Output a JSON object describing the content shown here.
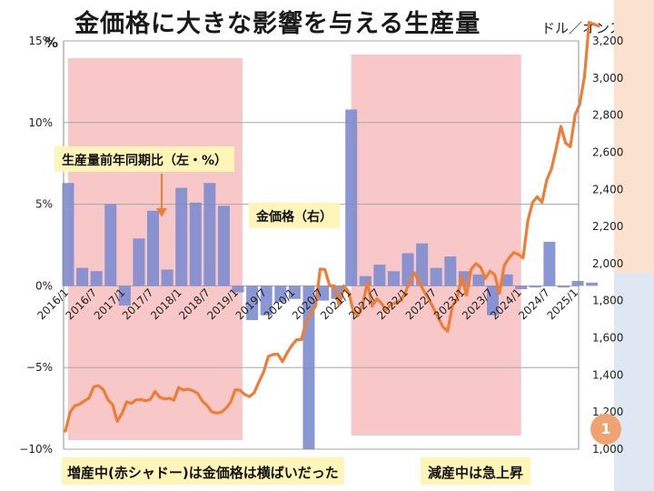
{
  "title": "金価格に大きな影響を与える生産量",
  "right_axis_unit": "ドル／オンス",
  "left_axis_unit": "%",
  "callouts": {
    "production_label": "生産量前年同期比（左・%）",
    "gold_label": "金価格（右）"
  },
  "notes": {
    "left": "増産中(赤シャドー)は金価格は横ばいだった",
    "right": "減産中は急上昇"
  },
  "page_number": "1",
  "colors": {
    "bars": "#7d8cd0",
    "line": "#ee7d35",
    "shade": "#f8c8c8",
    "callout_bg": "#fff5b8",
    "page_badge": "#f0a371"
  },
  "chart_data": {
    "type": "bar+line",
    "x_tick_labels": [
      "2016/1",
      "2016/7",
      "2017/1",
      "2017/7",
      "2018/1",
      "2018/7",
      "2019/1",
      "2019/7",
      "2020/1",
      "2020/7",
      "2021/1",
      "2021/7",
      "2022/1",
      "2022/7",
      "2023/1",
      "2023/7",
      "2024/1",
      "2024/7",
      "2025/1"
    ],
    "left_axis": {
      "ticks": [
        "15%",
        "10%",
        "5%",
        "0%",
        "−5%",
        "−10%"
      ],
      "ylim": [
        -10,
        15
      ]
    },
    "right_axis": {
      "ticks": [
        "3,200",
        "3,000",
        "2,800",
        "2,600",
        "2,400",
        "2,200",
        "2,000",
        "1,800",
        "1,600",
        "1,400",
        "1,200",
        "1,000"
      ],
      "ylim": [
        1000,
        3200
      ]
    },
    "shaded_ranges": [
      [
        "2016/1",
        "2019/1"
      ],
      [
        "2021/1",
        "2024/1"
      ]
    ],
    "bar_series": {
      "name": "生産量前年同期比（左・%）",
      "x": [
        "2016/1",
        "2016/4",
        "2016/7",
        "2016/10",
        "2017/1",
        "2017/4",
        "2017/7",
        "2017/10",
        "2018/1",
        "2018/4",
        "2018/7",
        "2018/10",
        "2019/1",
        "2019/4",
        "2019/7",
        "2019/10",
        "2020/1",
        "2020/4",
        "2020/7",
        "2020/10",
        "2021/1",
        "2021/4",
        "2021/7",
        "2021/10",
        "2022/1",
        "2022/4",
        "2022/7",
        "2022/10",
        "2023/1",
        "2023/4",
        "2023/7",
        "2023/10",
        "2024/1",
        "2024/4",
        "2024/7",
        "2024/10",
        "2025/1",
        "2025/4"
      ],
      "values": [
        6.3,
        1.1,
        0.9,
        5.0,
        -1.2,
        2.9,
        4.6,
        1.0,
        6.0,
        5.1,
        6.3,
        4.9,
        -0.4,
        -2.1,
        -1.8,
        -1.0,
        -0.8,
        -10.0,
        -0.9,
        -0.8,
        10.8,
        0.6,
        1.3,
        0.9,
        2.0,
        2.6,
        1.1,
        1.8,
        0.9,
        0.7,
        -1.8,
        0.7,
        -0.2,
        -0.1,
        2.7,
        -0.1,
        0.3,
        0.2
      ]
    },
    "line_series": {
      "name": "金価格（右）",
      "x": [
        "2016/1",
        "2016/2",
        "2016/3",
        "2016/4",
        "2016/5",
        "2016/6",
        "2016/7",
        "2016/8",
        "2016/9",
        "2016/10",
        "2016/11",
        "2016/12",
        "2017/1",
        "2017/2",
        "2017/3",
        "2017/4",
        "2017/5",
        "2017/6",
        "2017/7",
        "2017/8",
        "2017/9",
        "2017/10",
        "2017/11",
        "2017/12",
        "2018/1",
        "2018/2",
        "2018/3",
        "2018/4",
        "2018/5",
        "2018/6",
        "2018/7",
        "2018/8",
        "2018/9",
        "2018/10",
        "2018/11",
        "2018/12",
        "2019/1",
        "2019/2",
        "2019/3",
        "2019/4",
        "2019/5",
        "2019/6",
        "2019/7",
        "2019/8",
        "2019/9",
        "2019/10",
        "2019/11",
        "2019/12",
        "2020/1",
        "2020/2",
        "2020/3",
        "2020/4",
        "2020/5",
        "2020/6",
        "2020/7",
        "2020/8",
        "2020/9",
        "2020/10",
        "2020/11",
        "2020/12",
        "2021/1",
        "2021/2",
        "2021/3",
        "2021/4",
        "2021/5",
        "2021/6",
        "2021/7",
        "2021/8",
        "2021/9",
        "2021/10",
        "2021/11",
        "2021/12",
        "2022/1",
        "2022/2",
        "2022/3",
        "2022/4",
        "2022/5",
        "2022/6",
        "2022/7",
        "2022/8",
        "2022/9",
        "2022/10",
        "2022/11",
        "2022/12",
        "2023/1",
        "2023/2",
        "2023/3",
        "2023/4",
        "2023/5",
        "2023/6",
        "2023/7",
        "2023/8",
        "2023/9",
        "2023/10",
        "2023/11",
        "2023/12",
        "2024/1",
        "2024/2",
        "2024/3",
        "2024/4",
        "2024/5",
        "2024/6",
        "2024/7",
        "2024/8",
        "2024/9",
        "2024/10",
        "2024/11",
        "2024/12",
        "2025/1",
        "2025/2",
        "2025/3",
        "2025/4",
        "2025/5",
        "2025/6"
      ],
      "values": [
        1097,
        1200,
        1234,
        1242,
        1260,
        1275,
        1336,
        1342,
        1322,
        1266,
        1240,
        1150,
        1192,
        1255,
        1247,
        1266,
        1268,
        1260,
        1268,
        1311,
        1280,
        1270,
        1275,
        1264,
        1332,
        1318,
        1324,
        1315,
        1302,
        1260,
        1236,
        1201,
        1195,
        1198,
        1220,
        1252,
        1320,
        1318,
        1295,
        1283,
        1304,
        1362,
        1415,
        1500,
        1510,
        1512,
        1472,
        1520,
        1560,
        1590,
        1590,
        1685,
        1730,
        1770,
        1970,
        1968,
        1880,
        1880,
        1775,
        1880,
        1850,
        1745,
        1720,
        1780,
        1900,
        1770,
        1810,
        1785,
        1750,
        1780,
        1790,
        1800,
        1840,
        1905,
        1950,
        1900,
        1850,
        1810,
        1760,
        1710,
        1660,
        1635,
        1770,
        1810,
        1930,
        1830,
        1970,
        2000,
        1980,
        1920,
        1960,
        1940,
        1840,
        1990,
        2030,
        2060,
        2050,
        2030,
        2230,
        2330,
        2360,
        2330,
        2450,
        2510,
        2620,
        2740,
        2650,
        2630,
        2800,
        2860,
        3010,
        3300,
        3290,
        3280
      ]
    }
  }
}
